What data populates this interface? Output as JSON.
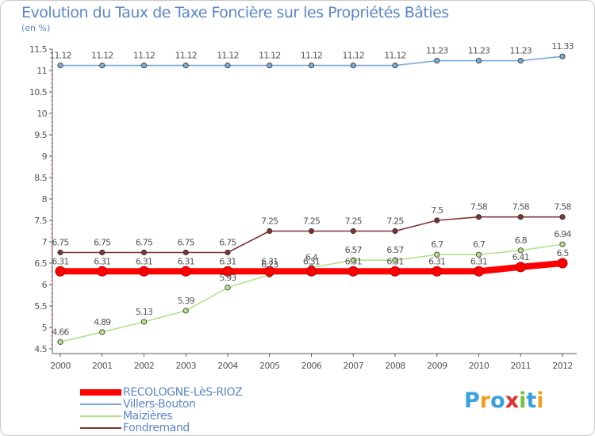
{
  "chart_data": {
    "type": "line",
    "title": "Evolution du Taux de Taxe Foncière sur les Propriétés Bâties",
    "ylabel": "(en %)",
    "xlabel": "",
    "categories": [
      "2000",
      "2001",
      "2002",
      "2003",
      "2004",
      "2005",
      "2006",
      "2007",
      "2008",
      "2009",
      "2010",
      "2011",
      "2012"
    ],
    "ylim": [
      4.5,
      11.5
    ],
    "yticks": [
      "4.5",
      "5",
      "5.5",
      "6",
      "6.5",
      "7",
      "7.5",
      "8",
      "8.5",
      "9",
      "9.5",
      "10",
      "10.5",
      "11",
      "11.5"
    ],
    "series": [
      {
        "name": "RECOLOGNE-LèS-RIOZ",
        "color": "#ff0000",
        "values": [
          6.31,
          6.31,
          6.31,
          6.31,
          6.31,
          6.31,
          6.31,
          6.31,
          6.31,
          6.31,
          6.31,
          6.41,
          6.5
        ],
        "labels": [
          "6.31",
          "6.31",
          "6.31",
          "6.31",
          "6.31",
          "6.31",
          "6.31",
          "6.31",
          "6.31",
          "6.31",
          "6.31",
          "6.41",
          "6.5"
        ]
      },
      {
        "name": "Villers-Bouton",
        "color": "#7aaad4",
        "values": [
          11.12,
          11.12,
          11.12,
          11.12,
          11.12,
          11.12,
          11.12,
          11.12,
          11.12,
          11.23,
          11.23,
          11.23,
          11.33
        ],
        "labels": [
          "11.12",
          "11.12",
          "11.12",
          "11.12",
          "11.12",
          "11.12",
          "11.12",
          "11.12",
          "11.12",
          "11.23",
          "11.23",
          "11.23",
          "11.33"
        ]
      },
      {
        "name": "Maizières",
        "color": "#b5e08a",
        "values": [
          4.66,
          4.89,
          5.13,
          5.39,
          5.93,
          6.23,
          6.4,
          6.57,
          6.57,
          6.7,
          6.7,
          6.8,
          6.94
        ],
        "labels": [
          "4.66",
          "4.89",
          "5.13",
          "5.39",
          "5.93",
          "6.23",
          "6.4",
          "6.57",
          "6.57",
          "6.7",
          "6.7",
          "6.8",
          "6.94"
        ]
      },
      {
        "name": "Fondremand",
        "color": "#7b3535",
        "values": [
          6.75,
          6.75,
          6.75,
          6.75,
          6.75,
          7.25,
          7.25,
          7.25,
          7.25,
          7.5,
          7.58,
          7.58,
          7.58
        ],
        "labels": [
          "6.75",
          "6.75",
          "6.75",
          "6.75",
          "6.75",
          "7.25",
          "7.25",
          "7.25",
          "7.25",
          "7.5",
          "7.58",
          "7.58",
          "7.58"
        ]
      }
    ],
    "grid": false,
    "legend_position": "bottom-left"
  },
  "logo": {
    "letters": [
      "P",
      "r",
      "o",
      "x",
      "i",
      "t",
      "i"
    ],
    "colors": [
      "#3a9fe0",
      "#f0a020",
      "#3a9fe0",
      "#e03030",
      "#7ac043",
      "#3a9fe0",
      "#f0a020"
    ]
  },
  "colors": {
    "axis": "#555555",
    "tick_minor": "#e36f6f",
    "label": "#555555"
  }
}
